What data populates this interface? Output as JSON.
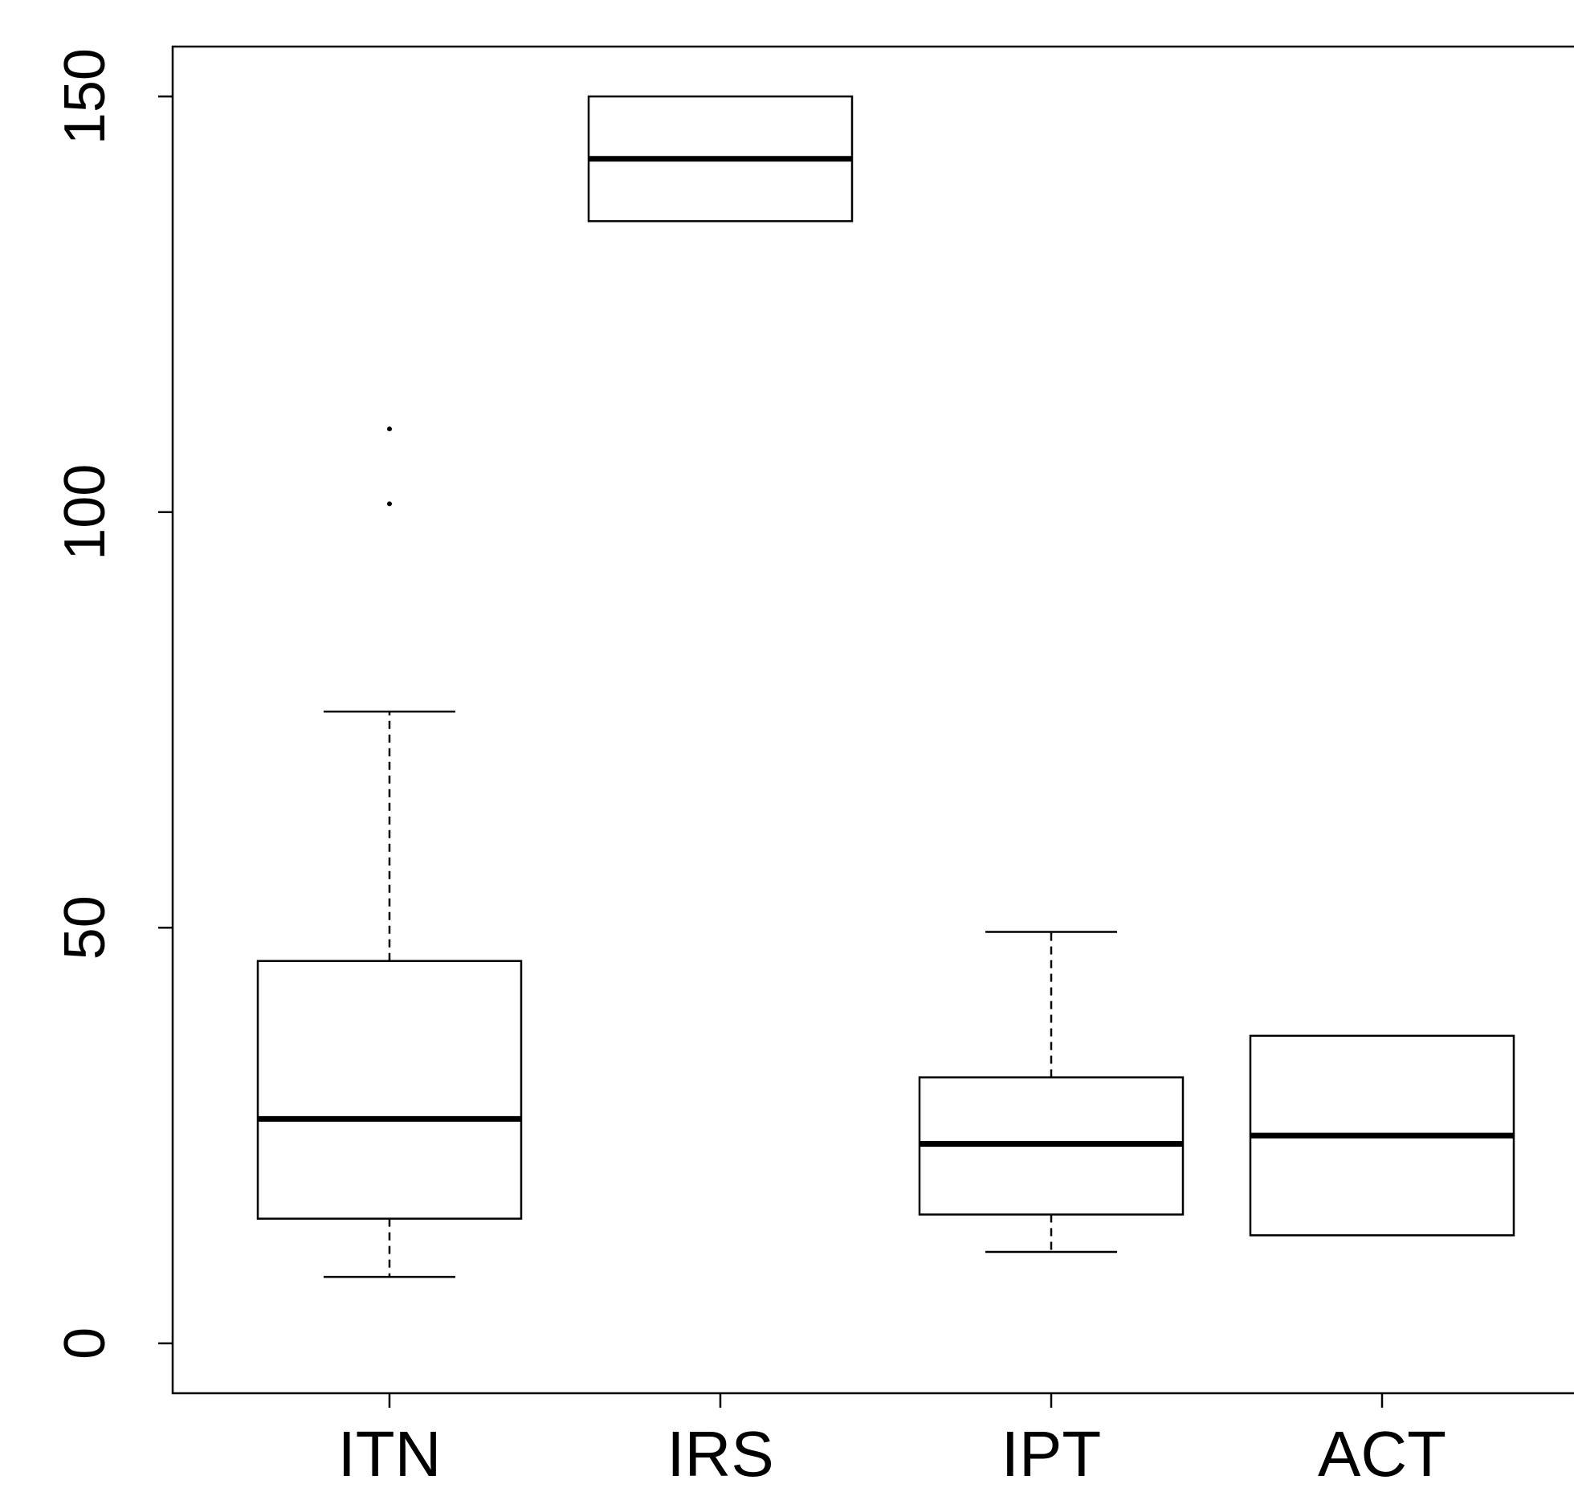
{
  "chart_data": {
    "type": "boxplot",
    "title": "",
    "xlabel": "",
    "ylabel": "",
    "categories": [
      "ITN",
      "IRS",
      "IPT",
      "ACT"
    ],
    "y_ticks": [
      0,
      50,
      100,
      150
    ],
    "ylim": [
      -6,
      156
    ],
    "grid": false,
    "legend": "none",
    "boxes": [
      {
        "name": "ITN",
        "whisker_low": 8,
        "q1": 15,
        "median": 27,
        "q3": 46,
        "whisker_high": 76,
        "outliers": [
          101,
          110
        ]
      },
      {
        "name": "IRS",
        "whisker_low": 135,
        "q1": 135,
        "median": 142.5,
        "q3": 150,
        "whisker_high": 150,
        "outliers": []
      },
      {
        "name": "IPT",
        "whisker_low": 11,
        "q1": 15.5,
        "median": 24,
        "q3": 32,
        "whisker_high": 49.5,
        "outliers": []
      },
      {
        "name": "ACT",
        "whisker_low": 13,
        "q1": 13,
        "median": 25,
        "q3": 37,
        "whisker_high": 37,
        "outliers": []
      }
    ],
    "colors": {
      "stroke": "#000000",
      "box_fill": "#ffffff",
      "background": "#ffffff"
    }
  }
}
